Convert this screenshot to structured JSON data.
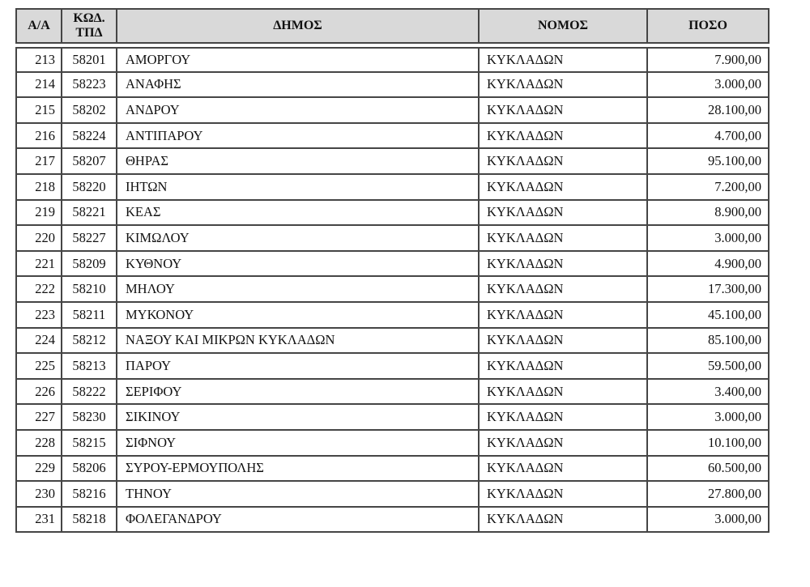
{
  "colors": {
    "page_bg": "#ffffff",
    "header_bg": "#d9d9d9",
    "border": "#454545",
    "text": "#111111"
  },
  "table": {
    "columns": [
      "Α/Α",
      "ΚΩΔ.\nΤΠΔ",
      "ΔΗΜΟΣ",
      "ΝΟΜΟΣ",
      "ΠΟΣΟ"
    ],
    "rows": [
      {
        "aa": "213",
        "kod_tpd": "58201",
        "dimos": "ΑΜΟΡΓΟΥ",
        "nomos": "ΚΥΚΛΑΔΩΝ",
        "poso": "7.900,00"
      },
      {
        "aa": "214",
        "kod_tpd": "58223",
        "dimos": "ΑΝΑΦΗΣ",
        "nomos": "ΚΥΚΛΑΔΩΝ",
        "poso": "3.000,00"
      },
      {
        "aa": "215",
        "kod_tpd": "58202",
        "dimos": "ΑΝΔΡΟΥ",
        "nomos": "ΚΥΚΛΑΔΩΝ",
        "poso": "28.100,00"
      },
      {
        "aa": "216",
        "kod_tpd": "58224",
        "dimos": "ΑΝΤΙΠΑΡΟΥ",
        "nomos": "ΚΥΚΛΑΔΩΝ",
        "poso": "4.700,00"
      },
      {
        "aa": "217",
        "kod_tpd": "58207",
        "dimos": "ΘΗΡΑΣ",
        "nomos": "ΚΥΚΛΑΔΩΝ",
        "poso": "95.100,00"
      },
      {
        "aa": "218",
        "kod_tpd": "58220",
        "dimos": "ΙΗΤΩΝ",
        "nomos": "ΚΥΚΛΑΔΩΝ",
        "poso": "7.200,00"
      },
      {
        "aa": "219",
        "kod_tpd": "58221",
        "dimos": "ΚΕΑΣ",
        "nomos": "ΚΥΚΛΑΔΩΝ",
        "poso": "8.900,00"
      },
      {
        "aa": "220",
        "kod_tpd": "58227",
        "dimos": "ΚΙΜΩΛΟΥ",
        "nomos": "ΚΥΚΛΑΔΩΝ",
        "poso": "3.000,00"
      },
      {
        "aa": "221",
        "kod_tpd": "58209",
        "dimos": "ΚΥΘΝΟΥ",
        "nomos": "ΚΥΚΛΑΔΩΝ",
        "poso": "4.900,00"
      },
      {
        "aa": "222",
        "kod_tpd": "58210",
        "dimos": "ΜΗΛΟΥ",
        "nomos": "ΚΥΚΛΑΔΩΝ",
        "poso": "17.300,00"
      },
      {
        "aa": "223",
        "kod_tpd": "58211",
        "dimos": "ΜΥΚΟΝΟΥ",
        "nomos": "ΚΥΚΛΑΔΩΝ",
        "poso": "45.100,00"
      },
      {
        "aa": "224",
        "kod_tpd": "58212",
        "dimos": "ΝΑΞΟΥ ΚΑΙ ΜΙΚΡΩΝ ΚΥΚΛΑΔΩΝ",
        "nomos": "ΚΥΚΛΑΔΩΝ",
        "poso": "85.100,00"
      },
      {
        "aa": "225",
        "kod_tpd": "58213",
        "dimos": "ΠΑΡΟΥ",
        "nomos": "ΚΥΚΛΑΔΩΝ",
        "poso": "59.500,00"
      },
      {
        "aa": "226",
        "kod_tpd": "58222",
        "dimos": "ΣΕΡΙΦΟΥ",
        "nomos": "ΚΥΚΛΑΔΩΝ",
        "poso": "3.400,00"
      },
      {
        "aa": "227",
        "kod_tpd": "58230",
        "dimos": "ΣΙΚΙΝΟΥ",
        "nomos": "ΚΥΚΛΑΔΩΝ",
        "poso": "3.000,00"
      },
      {
        "aa": "228",
        "kod_tpd": "58215",
        "dimos": "ΣΙΦΝΟΥ",
        "nomos": "ΚΥΚΛΑΔΩΝ",
        "poso": "10.100,00"
      },
      {
        "aa": "229",
        "kod_tpd": "58206",
        "dimos": "ΣΥΡΟΥ-ΕΡΜΟΥΠΟΛΗΣ",
        "nomos": "ΚΥΚΛΑΔΩΝ",
        "poso": "60.500,00"
      },
      {
        "aa": "230",
        "kod_tpd": "58216",
        "dimos": "ΤΗΝΟΥ",
        "nomos": "ΚΥΚΛΑΔΩΝ",
        "poso": "27.800,00"
      },
      {
        "aa": "231",
        "kod_tpd": "58218",
        "dimos": "ΦΟΛΕΓΑΝΔΡΟΥ",
        "nomos": "ΚΥΚΛΑΔΩΝ",
        "poso": "3.000,00"
      }
    ]
  }
}
